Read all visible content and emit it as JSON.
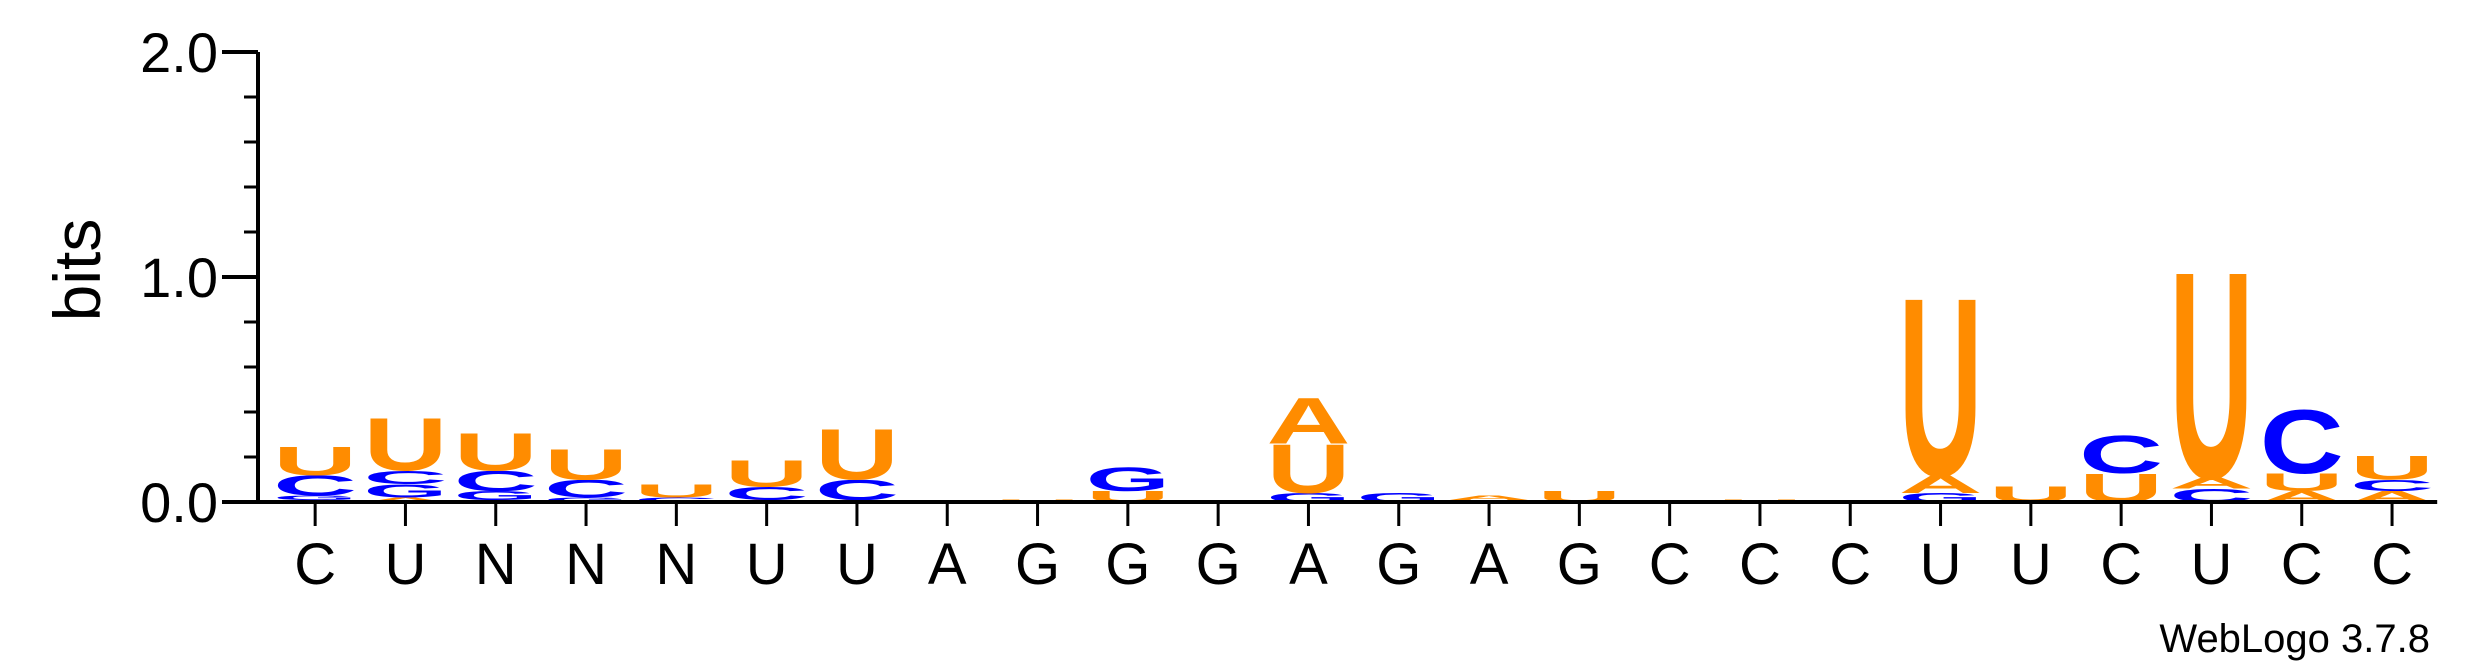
{
  "chart_data": {
    "type": "sequence-logo",
    "ylabel": "bits",
    "ylim": [
      0,
      2.0
    ],
    "yticks": [
      {
        "value": 0.0,
        "label": "0.0"
      },
      {
        "value": 1.0,
        "label": "1.0"
      },
      {
        "value": 2.0,
        "label": "2.0"
      }
    ],
    "consensus": [
      "C",
      "U",
      "N",
      "N",
      "N",
      "U",
      "U",
      "A",
      "G",
      "G",
      "G",
      "A",
      "G",
      "A",
      "G",
      "C",
      "C",
      "C",
      "U",
      "U",
      "C",
      "U",
      "C",
      "C"
    ],
    "colors": {
      "A": "#ff8c00",
      "U": "#ff8c00",
      "C": "#0000ff",
      "G": "#0000ff"
    },
    "stacks": [
      [
        [
          "A",
          0.01
        ],
        [
          "G",
          0.02
        ],
        [
          "C",
          0.09
        ],
        [
          "U",
          0.13
        ]
      ],
      [
        [
          "A",
          0.02
        ],
        [
          "G",
          0.06
        ],
        [
          "C",
          0.06
        ],
        [
          "U",
          0.24
        ]
      ],
      [
        [
          "A",
          0.01
        ],
        [
          "G",
          0.04
        ],
        [
          "C",
          0.09
        ],
        [
          "U",
          0.17
        ]
      ],
      [
        [
          "G",
          0.02
        ],
        [
          "C",
          0.08
        ],
        [
          "U",
          0.14
        ]
      ],
      [
        [
          "C",
          0.02
        ],
        [
          "U",
          0.06
        ]
      ],
      [
        [
          "A",
          0.01
        ],
        [
          "C",
          0.06
        ],
        [
          "U",
          0.12
        ]
      ],
      [
        [
          "A",
          0.01
        ],
        [
          "C",
          0.09
        ],
        [
          "U",
          0.23
        ]
      ],
      [],
      [
        [
          "U",
          0.01
        ]
      ],
      [
        [
          "U",
          0.05
        ],
        [
          "G",
          0.11
        ]
      ],
      [],
      [
        [
          "G",
          0.04
        ],
        [
          "U",
          0.22
        ],
        [
          "A",
          0.21
        ]
      ],
      [
        [
          "G",
          0.04
        ]
      ],
      [
        [
          "U",
          0.01
        ],
        [
          "A",
          0.02
        ]
      ],
      [
        [
          "U",
          0.05
        ]
      ],
      [],
      [
        [
          "U",
          0.01
        ]
      ],
      [],
      [
        [
          "G",
          0.04
        ],
        [
          "A",
          0.08
        ],
        [
          "U",
          0.81
        ]
      ],
      [
        [
          "U",
          0.07
        ]
      ],
      [
        [
          "U",
          0.13
        ],
        [
          "C",
          0.17
        ]
      ],
      [
        [
          "C",
          0.06
        ],
        [
          "A",
          0.05
        ],
        [
          "U",
          0.94
        ]
      ],
      [
        [
          "A",
          0.05
        ],
        [
          "U",
          0.08
        ],
        [
          "C",
          0.29
        ]
      ],
      [
        [
          "A",
          0.05
        ],
        [
          "C",
          0.05
        ],
        [
          "U",
          0.11
        ]
      ]
    ]
  },
  "watermark": "WebLogo 3.7.8"
}
